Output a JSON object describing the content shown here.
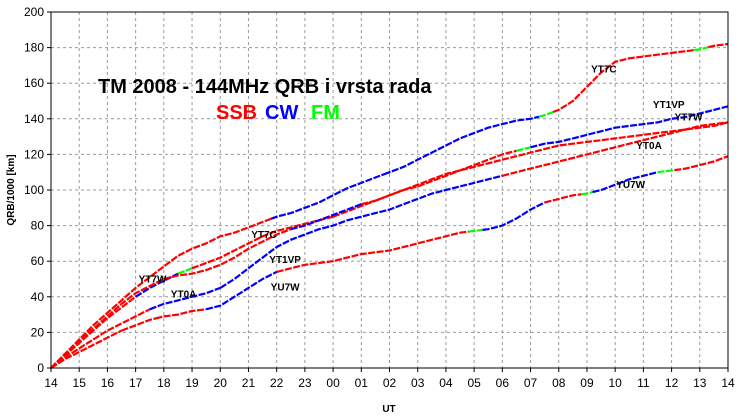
{
  "chart_data": {
    "type": "line",
    "title": "TM 2008 - 144MHz QRB i vrsta rada",
    "legend": [
      {
        "label": "SSB",
        "color": "#ff0000"
      },
      {
        "label": "CW",
        "color": "#0000ff"
      },
      {
        "label": "FM",
        "color": "#00ff00"
      }
    ],
    "xlabel": "UT",
    "ylabel": "QRB/1000 [km]",
    "x_ticks": [
      "14",
      "15",
      "16",
      "17",
      "18",
      "19",
      "20",
      "21",
      "22",
      "23",
      "00",
      "01",
      "02",
      "03",
      "04",
      "05",
      "06",
      "07",
      "08",
      "09",
      "10",
      "11",
      "12",
      "13",
      "14"
    ],
    "xlim": [
      0,
      24
    ],
    "ylim": [
      0,
      200
    ],
    "y_ticks": [
      0,
      20,
      40,
      60,
      80,
      100,
      120,
      140,
      160,
      180,
      200
    ],
    "grid": true,
    "annotations": [
      {
        "text": "YT7C",
        "x": 7.55,
        "y": 73
      },
      {
        "text": "YT7W",
        "x": 3.6,
        "y": 48
      },
      {
        "text": "YT0A",
        "x": 4.7,
        "y": 39.5
      },
      {
        "text": "YT1VP",
        "x": 8.3,
        "y": 59
      },
      {
        "text": "YU7W",
        "x": 8.3,
        "y": 43.5
      },
      {
        "text": "YT7C",
        "x": 19.6,
        "y": 166
      },
      {
        "text": "YT1VP",
        "x": 21.9,
        "y": 146
      },
      {
        "text": "YT7W",
        "x": 22.6,
        "y": 139
      },
      {
        "text": "YT0A",
        "x": 21.2,
        "y": 123
      },
      {
        "text": "YU7W",
        "x": 20.55,
        "y": 101
      }
    ],
    "series": [
      {
        "name": "YT7C",
        "x": [
          0,
          0.5,
          1,
          1.5,
          2,
          2.5,
          3,
          3.5,
          4,
          4.5,
          5,
          5.5,
          6,
          6.5,
          7,
          7.5,
          8,
          8.5,
          9,
          9.5,
          10,
          10.5,
          11,
          11.5,
          12,
          12.5,
          13,
          13.5,
          14,
          14.5,
          15,
          15.5,
          16,
          16.5,
          17,
          17.5,
          18,
          18.5,
          19,
          19.5,
          20,
          20.5,
          21,
          21.5,
          22,
          22.5,
          23,
          23.5,
          24
        ],
        "y": [
          0,
          8,
          16,
          24,
          31,
          38,
          45,
          51,
          57,
          63,
          67,
          70,
          74,
          76,
          79,
          82,
          85,
          87,
          90,
          93,
          97,
          101,
          104,
          107,
          110,
          113,
          117,
          121,
          125,
          129,
          132,
          135,
          137,
          139,
          140,
          142,
          145,
          150,
          158,
          166,
          172,
          174,
          175,
          176,
          177,
          178,
          179,
          181,
          182
        ],
        "segments": [
          {
            "from": 0,
            "to": 7.8,
            "mode": "SSB"
          },
          {
            "from": 7.8,
            "to": 11.8,
            "mode": "CW"
          },
          {
            "from": 11.8,
            "to": 17.3,
            "mode": "CW"
          },
          {
            "from": 17.3,
            "to": 17.8,
            "mode": "FM"
          },
          {
            "from": 17.8,
            "to": 22.8,
            "mode": "SSB"
          },
          {
            "from": 22.8,
            "to": 23.3,
            "mode": "FM"
          },
          {
            "from": 23.3,
            "to": 24,
            "mode": "SSB"
          }
        ]
      },
      {
        "name": "YT7W",
        "x": [
          0,
          0.5,
          1,
          1.5,
          2,
          2.5,
          3,
          3.5,
          4,
          4.5,
          5,
          5.5,
          6,
          6.5,
          7,
          7.5,
          8,
          8.5,
          9,
          9.5,
          10,
          10.5,
          11,
          11.5,
          12,
          12.5,
          13,
          13.5,
          14,
          14.5,
          15,
          15.5,
          16,
          16.5,
          17,
          17.5,
          18,
          18.5,
          19,
          19.5,
          20,
          20.5,
          21,
          21.5,
          22,
          22.5,
          23,
          23.5,
          24
        ],
        "y": [
          0,
          7,
          14,
          21,
          28,
          34,
          40,
          45,
          49,
          53,
          56,
          59,
          62,
          66,
          70,
          74,
          77,
          79,
          81,
          83,
          85,
          88,
          91,
          94,
          97,
          100,
          103,
          106,
          109,
          111,
          113,
          115,
          117,
          119,
          121,
          123,
          125,
          126,
          127,
          128,
          129,
          130,
          131,
          132,
          133,
          134,
          135,
          136,
          138
        ],
        "segments": [
          {
            "from": 0,
            "to": 3,
            "mode": "SSB"
          },
          {
            "from": 3,
            "to": 4.5,
            "mode": "CW"
          },
          {
            "from": 4.5,
            "to": 5,
            "mode": "FM"
          },
          {
            "from": 5,
            "to": 10,
            "mode": "SSB"
          },
          {
            "from": 10,
            "to": 24,
            "mode": "SSB"
          }
        ]
      },
      {
        "name": "YT1VP",
        "x": [
          0,
          0.5,
          1,
          1.5,
          2,
          2.5,
          3,
          3.5,
          4,
          4.5,
          5,
          5.5,
          6,
          6.5,
          7,
          7.5,
          8,
          8.5,
          9,
          9.5,
          10,
          10.5,
          11,
          11.5,
          12,
          12.5,
          13,
          13.5,
          14,
          14.5,
          15,
          15.5,
          16,
          16.5,
          17,
          17.5,
          18,
          18.5,
          19,
          19.5,
          20,
          20.5,
          21,
          21.5,
          22,
          22.5,
          23,
          23.5,
          24
        ],
        "y": [
          0,
          8,
          15,
          22,
          29,
          36,
          42,
          46,
          50,
          52,
          53,
          55,
          58,
          62,
          67,
          71,
          75,
          78,
          80,
          83,
          86,
          89,
          92,
          94,
          97,
          100,
          102,
          105,
          108,
          111,
          114,
          117,
          120,
          122,
          124,
          126,
          127,
          129,
          131,
          133,
          135,
          136,
          137,
          138,
          140,
          141,
          143,
          145,
          147
        ],
        "segments": [
          {
            "from": 0,
            "to": 8.5,
            "mode": "SSB"
          },
          {
            "from": 8.5,
            "to": 11,
            "mode": "CW"
          },
          {
            "from": 11,
            "to": 16.5,
            "mode": "SSB"
          },
          {
            "from": 16.5,
            "to": 17,
            "mode": "FM"
          },
          {
            "from": 17,
            "to": 24,
            "mode": "CW"
          }
        ]
      },
      {
        "name": "YT0A",
        "x": [
          0,
          0.5,
          1,
          1.5,
          2,
          2.5,
          3,
          3.5,
          4,
          4.5,
          5,
          5.5,
          6,
          6.5,
          7,
          7.5,
          8,
          8.5,
          9,
          9.5,
          10,
          10.5,
          11,
          11.5,
          12,
          12.5,
          13,
          13.5,
          14,
          14.5,
          15,
          15.5,
          16,
          16.5,
          17,
          17.5,
          18,
          18.5,
          19,
          19.5,
          20,
          20.5,
          21,
          21.5,
          22,
          22.5,
          23,
          23.5,
          24
        ],
        "y": [
          0,
          6,
          11,
          16,
          21,
          25,
          29,
          33,
          36,
          38,
          40,
          42,
          45,
          50,
          56,
          62,
          68,
          72,
          75,
          78,
          80,
          83,
          85,
          87,
          89,
          92,
          95,
          98,
          100,
          102,
          104,
          106,
          108,
          110,
          112,
          114,
          116,
          118,
          120,
          122,
          124,
          126,
          128,
          130,
          132,
          134,
          136,
          137,
          138
        ],
        "segments": [
          {
            "from": 0,
            "to": 3.5,
            "mode": "SSB"
          },
          {
            "from": 3.5,
            "to": 6,
            "mode": "CW"
          },
          {
            "from": 6,
            "to": 16,
            "mode": "CW"
          },
          {
            "from": 16,
            "to": 24,
            "mode": "SSB"
          }
        ]
      },
      {
        "name": "YU7W",
        "x": [
          0,
          0.5,
          1,
          1.5,
          2,
          2.5,
          3,
          3.5,
          4,
          4.5,
          5,
          5.5,
          6,
          6.5,
          7,
          7.5,
          8,
          8.5,
          9,
          9.5,
          10,
          10.5,
          11,
          11.5,
          12,
          12.5,
          13,
          13.5,
          14,
          14.5,
          15,
          15.5,
          16,
          16.5,
          17,
          17.5,
          18,
          18.5,
          19,
          19.5,
          20,
          20.5,
          21,
          21.5,
          22,
          22.5,
          23,
          23.5,
          24
        ],
        "y": [
          0,
          5,
          9,
          13,
          17,
          21,
          24,
          27,
          29,
          30,
          32,
          33,
          35,
          40,
          45,
          50,
          54,
          56,
          58,
          59,
          60,
          62,
          64,
          65,
          66,
          68,
          70,
          72,
          74,
          76,
          77,
          78,
          80,
          84,
          89,
          93,
          95,
          97,
          98,
          100,
          103,
          106,
          108,
          110,
          111,
          112,
          114,
          116,
          119
        ],
        "segments": [
          {
            "from": 0,
            "to": 2.5,
            "mode": "SSB"
          },
          {
            "from": 2.5,
            "to": 3.7,
            "mode": "SSB"
          },
          {
            "from": 3.7,
            "to": 5.5,
            "mode": "SSB"
          },
          {
            "from": 5.5,
            "to": 8,
            "mode": "CW"
          },
          {
            "from": 8,
            "to": 14.8,
            "mode": "SSB"
          },
          {
            "from": 14.8,
            "to": 15.3,
            "mode": "FM"
          },
          {
            "from": 15.3,
            "to": 17.5,
            "mode": "CW"
          },
          {
            "from": 17.5,
            "to": 18.8,
            "mode": "SSB"
          },
          {
            "from": 18.8,
            "to": 19.2,
            "mode": "FM"
          },
          {
            "from": 19.2,
            "to": 21.5,
            "mode": "CW"
          },
          {
            "from": 21.5,
            "to": 22.1,
            "mode": "FM"
          },
          {
            "from": 22.1,
            "to": 24,
            "mode": "SSB"
          }
        ]
      }
    ]
  }
}
